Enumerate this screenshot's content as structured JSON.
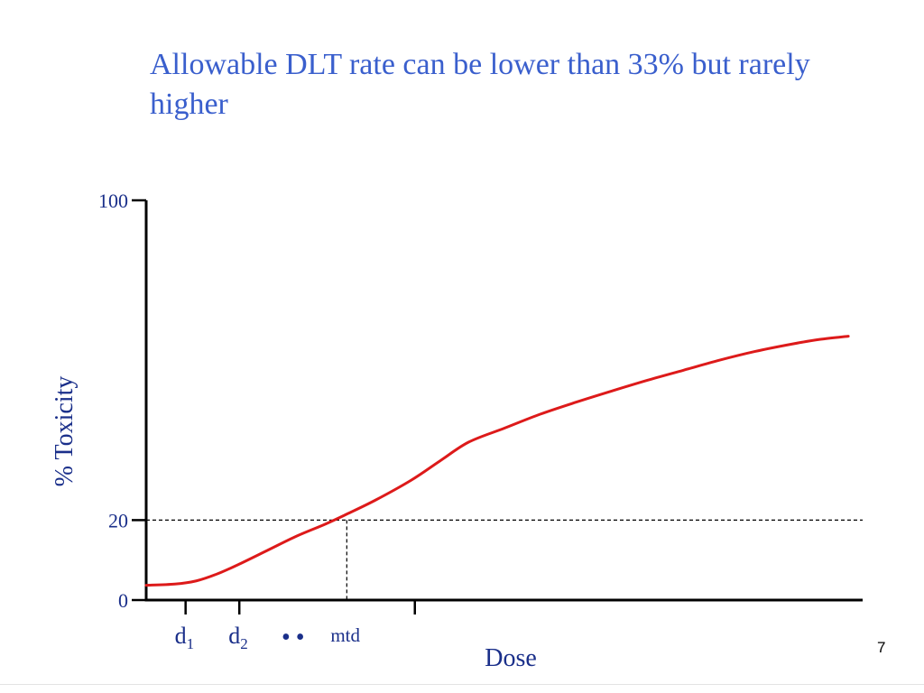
{
  "slide": {
    "title": "Allowable DLT rate can be lower than 33% but rarely higher",
    "page_number": "7"
  },
  "chart_data": {
    "type": "line",
    "xlabel": "Dose",
    "ylabel": "% Toxicity",
    "ylim": [
      0,
      100
    ],
    "xlim": [
      0,
      100
    ],
    "y_ticks": [
      {
        "value": 0,
        "label": "0"
      },
      {
        "value": 20,
        "label": "20"
      },
      {
        "value": 100,
        "label": "100"
      }
    ],
    "x_ticks": [
      {
        "value": 5.5,
        "label": "d",
        "sub": "1"
      },
      {
        "value": 13,
        "label": "d",
        "sub": "2"
      },
      {
        "value": 37.5,
        "label": ""
      }
    ],
    "ellipsis_label": "••",
    "mtd_label": "mtd",
    "reference": {
      "y": 20,
      "x": 28,
      "style": "dashed"
    },
    "series": [
      {
        "color": "#dd1a1a",
        "points": [
          [
            0,
            3.7
          ],
          [
            4,
            4.0
          ],
          [
            7,
            4.8
          ],
          [
            10,
            6.6
          ],
          [
            13,
            9.0
          ],
          [
            17,
            12.5
          ],
          [
            21,
            16.0
          ],
          [
            25,
            19.0
          ],
          [
            28,
            21.5
          ],
          [
            32,
            25.0
          ],
          [
            37,
            30.0
          ],
          [
            41,
            34.8
          ],
          [
            45,
            39.5
          ],
          [
            50,
            43.0
          ],
          [
            55,
            46.5
          ],
          [
            60,
            49.5
          ],
          [
            65,
            52.3
          ],
          [
            70,
            55.0
          ],
          [
            75,
            57.5
          ],
          [
            80,
            60.0
          ],
          [
            85,
            62.2
          ],
          [
            90,
            64.0
          ],
          [
            94,
            65.2
          ],
          [
            98,
            66.0
          ]
        ]
      }
    ],
    "grid": false,
    "legend": "none"
  }
}
